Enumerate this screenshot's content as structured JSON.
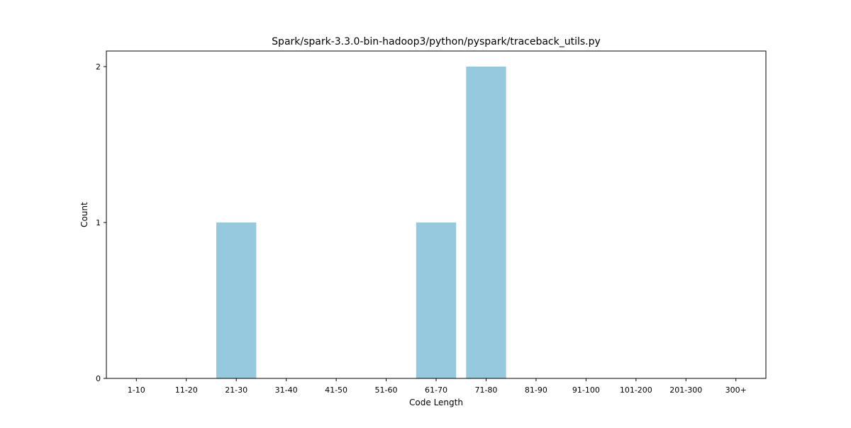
{
  "chart_data": {
    "type": "bar",
    "title": "Spark/spark-3.3.0-bin-hadoop3/python/pyspark/traceback_utils.py",
    "xlabel": "Code Length",
    "ylabel": "Count",
    "categories": [
      "1-10",
      "11-20",
      "21-30",
      "31-40",
      "41-50",
      "51-60",
      "61-70",
      "71-80",
      "81-90",
      "91-100",
      "101-200",
      "201-300",
      "300+"
    ],
    "values": [
      0,
      0,
      1,
      0,
      0,
      0,
      1,
      2,
      0,
      0,
      0,
      0,
      0
    ],
    "ylim": [
      0,
      2.1
    ],
    "yticks": [
      0,
      1,
      2
    ],
    "bar_color": "#96c9dd",
    "grid": false,
    "legend": "none"
  }
}
